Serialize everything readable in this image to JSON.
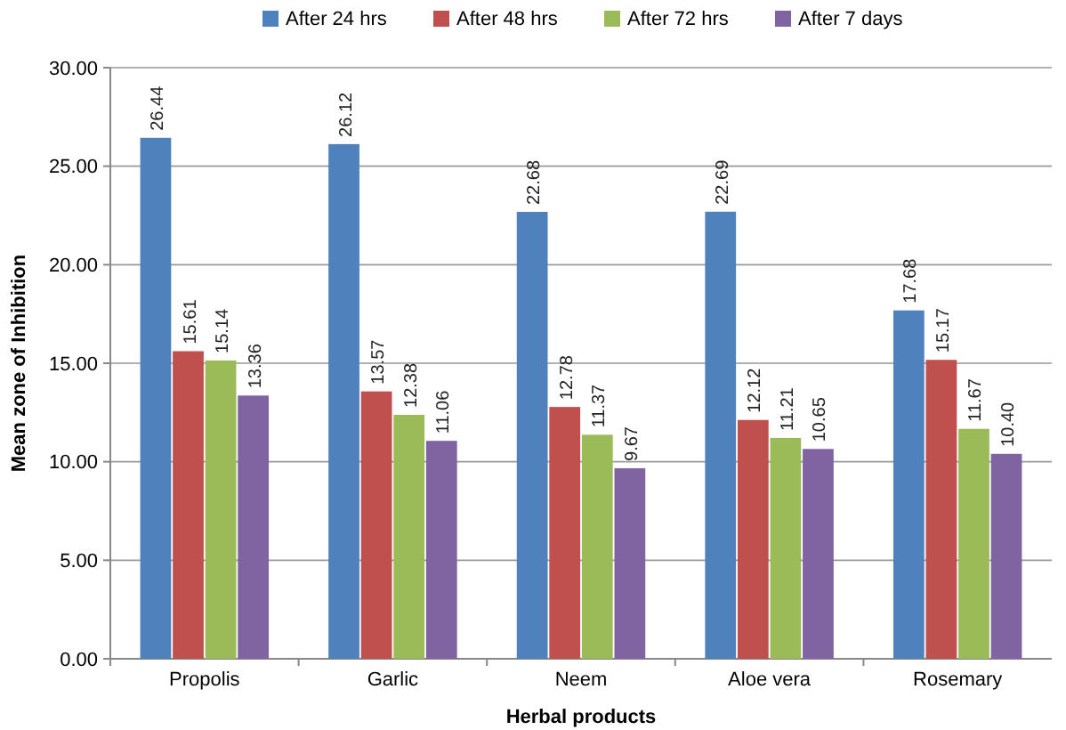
{
  "chart_data": {
    "type": "bar",
    "xlabel": "Herbal products",
    "ylabel": "Mean zone of Inhibition",
    "categories": [
      "Propolis",
      "Garlic",
      "Neem",
      "Aloe vera",
      "Rosemary"
    ],
    "series": [
      {
        "name": "After 24 hrs",
        "color": "#4f81bd",
        "values": [
          26.44,
          26.12,
          22.68,
          22.69,
          17.68
        ],
        "value_labels": [
          "26.44",
          "26.12",
          "22.68",
          "22.69",
          "17.68"
        ]
      },
      {
        "name": "After 48 hrs",
        "color": "#c0504d",
        "values": [
          15.61,
          13.57,
          12.78,
          12.12,
          15.17
        ],
        "value_labels": [
          "15.61",
          "13.57",
          "12.78",
          "12.12",
          "15.17"
        ]
      },
      {
        "name": "After 72 hrs",
        "color": "#9bbb59",
        "values": [
          15.14,
          12.38,
          11.37,
          11.21,
          11.67
        ],
        "value_labels": [
          "15.14",
          "12.38",
          "11.37",
          "11.21",
          "11.67"
        ]
      },
      {
        "name": "After 7 days",
        "color": "#8064a2",
        "values": [
          13.36,
          11.06,
          9.67,
          10.65,
          10.4
        ],
        "value_labels": [
          "13.36",
          "11.06",
          "9.67",
          "10.65",
          "10.40"
        ]
      }
    ],
    "ylim": [
      0,
      30
    ],
    "yticks": [
      {
        "value": 0,
        "label": "0.00"
      },
      {
        "value": 5,
        "label": "5.00"
      },
      {
        "value": 10,
        "label": "10.00"
      },
      {
        "value": 15,
        "label": "15.00"
      },
      {
        "value": 20,
        "label": "20.00"
      },
      {
        "value": 25,
        "label": "25.00"
      },
      {
        "value": 30,
        "label": "30.00"
      }
    ],
    "grid": "y",
    "legend": "top"
  }
}
